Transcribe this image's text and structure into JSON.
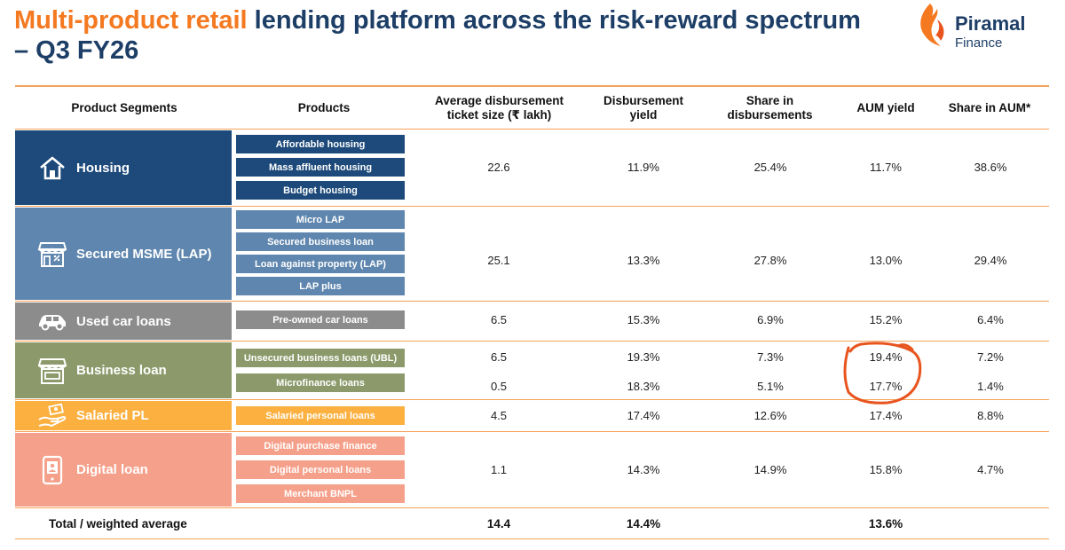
{
  "title": {
    "highlight": "Multi-product retail",
    "rest": "lending platform across the risk-reward spectrum – Q3 FY26"
  },
  "logo": {
    "brand": "Piramal",
    "sub": "Finance"
  },
  "headers": [
    "Product Segments",
    "Products",
    "Average disbursement ticket size (₹ lakh)",
    "Disbursement yield",
    "Share in disbursements",
    "AUM yield",
    "Share in AUM*"
  ],
  "segments": [
    {
      "name": "Housing",
      "icon": "house-icon",
      "color": "#1d4a7a",
      "products": [
        "Affordable housing",
        "Mass affluent housing",
        "Budget housing"
      ],
      "rows": [
        {
          "ticket": "22.6",
          "disb_yield": "11.9%",
          "disb_share": "25.4%",
          "aum_yield": "11.7%",
          "aum_share": "38.6%"
        }
      ]
    },
    {
      "name": "Secured MSME (LAP)",
      "icon": "storefront-icon",
      "color": "#5f86ae",
      "products": [
        "Micro LAP",
        "Secured business loan",
        "Loan against property (LAP)",
        "LAP plus"
      ],
      "rows": [
        {
          "ticket": "25.1",
          "disb_yield": "13.3%",
          "disb_share": "27.8%",
          "aum_yield": "13.0%",
          "aum_share": "29.4%"
        }
      ]
    },
    {
      "name": "Used car loans",
      "icon": "car-icon",
      "color": "#8c8c8c",
      "products": [
        "Pre-owned car loans"
      ],
      "rows": [
        {
          "ticket": "6.5",
          "disb_yield": "15.3%",
          "disb_share": "6.9%",
          "aum_yield": "15.2%",
          "aum_share": "6.4%"
        }
      ]
    },
    {
      "name": "Business loan",
      "icon": "shop-icon",
      "color": "#8c9a6b",
      "products": [
        "Unsecured business loans (UBL)",
        "Microfinance loans"
      ],
      "rows": [
        {
          "ticket": "6.5",
          "disb_yield": "19.3%",
          "disb_share": "7.3%",
          "aum_yield": "19.4%",
          "aum_share": "7.2%"
        },
        {
          "ticket": "0.5",
          "disb_yield": "18.3%",
          "disb_share": "5.1%",
          "aum_yield": "17.7%",
          "aum_share": "1.4%"
        }
      ]
    },
    {
      "name": "Salaried PL",
      "icon": "hand-money-icon",
      "color": "#fbb040",
      "products": [
        "Salaried personal loans"
      ],
      "rows": [
        {
          "ticket": "4.5",
          "disb_yield": "17.4%",
          "disb_share": "12.6%",
          "aum_yield": "17.4%",
          "aum_share": "8.8%"
        }
      ]
    },
    {
      "name": "Digital loan",
      "icon": "mobile-payment-icon",
      "color": "#f5a08a",
      "products": [
        "Digital purchase finance",
        "Digital personal loans",
        "Merchant BNPL"
      ],
      "rows": [
        {
          "ticket": "1.1",
          "disb_yield": "14.3%",
          "disb_share": "14.9%",
          "aum_yield": "15.8%",
          "aum_share": "4.7%"
        }
      ]
    }
  ],
  "total": {
    "label": "Total / weighted average",
    "ticket": "14.4",
    "disb_yield": "14.4%",
    "aum_yield": "13.6%"
  },
  "colors": {
    "orange": "#f47920",
    "navy": "#1d3e66",
    "rule": "#f5a35a",
    "annotation": "#e8541e"
  }
}
